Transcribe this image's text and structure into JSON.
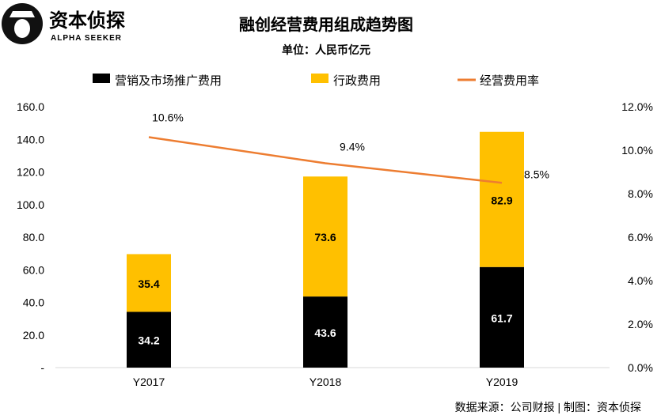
{
  "logo": {
    "name": "资本侦探",
    "sub": "ALPHA SEEKER"
  },
  "source": "数据来源：公司财报 | 制图：资本侦探",
  "chart_data": {
    "type": "bar",
    "title": "融创经营费用组成趋势图",
    "subtitle": "单位：人民币亿元",
    "categories": [
      "Y2017",
      "Y2018",
      "Y2019"
    ],
    "series": [
      {
        "name": "营销及市场推广费用",
        "kind": "bar",
        "stacked": true,
        "color": "#000000",
        "values": [
          34.2,
          43.6,
          61.7
        ],
        "labels": [
          "34.2",
          "43.6",
          "61.7"
        ]
      },
      {
        "name": "行政费用",
        "kind": "bar",
        "stacked": true,
        "color": "#FFC000",
        "values": [
          35.4,
          73.6,
          82.9
        ],
        "labels": [
          "35.4",
          "73.6",
          "82.9"
        ]
      },
      {
        "name": "经营费用率",
        "kind": "line",
        "axis": "right",
        "color": "#ED7D31",
        "values": [
          10.6,
          9.4,
          8.5
        ],
        "labels": [
          "10.6%",
          "9.4%",
          "8.5%"
        ]
      }
    ],
    "ylim": [
      0,
      160
    ],
    "yticks": [
      "-",
      "20.0",
      "40.0",
      "60.0",
      "80.0",
      "100.0",
      "120.0",
      "140.0",
      "160.0"
    ],
    "y2lim": [
      0,
      12
    ],
    "y2ticks": [
      "0.0%",
      "2.0%",
      "4.0%",
      "6.0%",
      "8.0%",
      "10.0%",
      "12.0%"
    ],
    "grid": false,
    "legend": "top"
  }
}
